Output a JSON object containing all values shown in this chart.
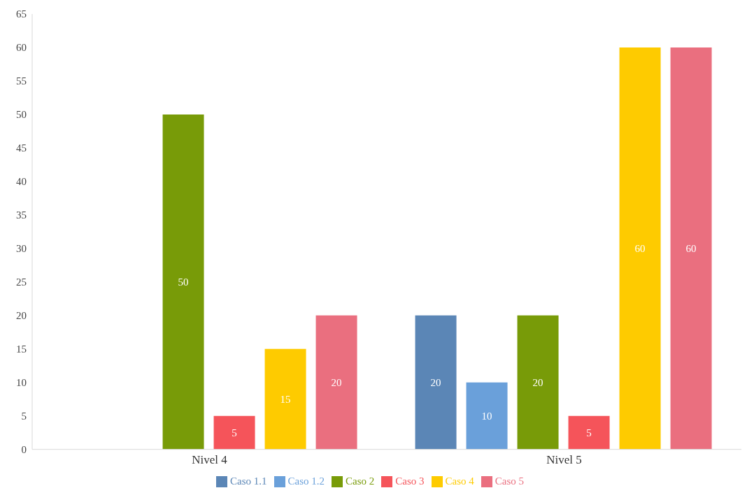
{
  "chart_data": {
    "type": "bar",
    "categories": [
      "Nivel 4",
      "Nivel 5"
    ],
    "series": [
      {
        "name": "Caso 1.1",
        "color": "#5b86b6",
        "values": [
          null,
          20
        ]
      },
      {
        "name": "Caso 1.2",
        "color": "#6aa0da",
        "values": [
          null,
          10
        ]
      },
      {
        "name": "Caso 2",
        "color": "#789b08",
        "values": [
          50,
          20
        ]
      },
      {
        "name": "Caso 3",
        "color": "#f5545a",
        "values": [
          5,
          5
        ]
      },
      {
        "name": "Caso 4",
        "color": "#fecb00",
        "values": [
          15,
          60
        ]
      },
      {
        "name": "Caso 5",
        "color": "#ea6f7f",
        "values": [
          20,
          60
        ]
      }
    ],
    "ylim": [
      0,
      65
    ],
    "yticks": [
      0,
      5,
      10,
      15,
      20,
      25,
      30,
      35,
      40,
      45,
      50,
      55,
      60,
      65
    ],
    "data_labels": true,
    "legend": "bottom",
    "grid": false
  }
}
